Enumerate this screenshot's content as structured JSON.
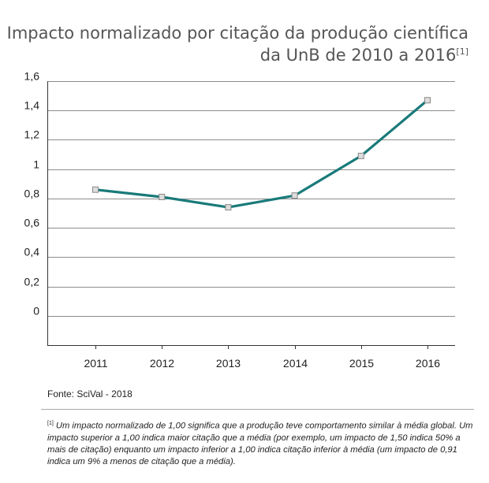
{
  "title_line1": "Impacto normalizado por citação da produção científica",
  "title_line2": "da UnB de 2010 a 2016",
  "title_ref": "[1]",
  "source": "Fonte: SciVal - 2018",
  "footnote_ref": "[1]",
  "footnote_text": " Um impacto normalizado de 1,00 significa que a produção teve comportamento similar à média global. Um impacto superior a 1,00 indica maior citação que a média (por exemplo, um impacto de 1,50 indica 50% a mais de citação) enquanto um impacto inferior a 1,00 indica citação inferior à média (um impacto de 0,91 indica um 9% a menos de citação que a média).",
  "colors": {
    "line": "#1a7a7a",
    "grid": "#666666",
    "marker_fill": "#dddddd",
    "marker_stroke": "#888888"
  },
  "chart_data": {
    "type": "line",
    "categories": [
      "2011",
      "2012",
      "2013",
      "2014",
      "2015",
      "2016"
    ],
    "series": [
      {
        "values": [
          0.86,
          0.81,
          0.74,
          0.82,
          1.09,
          1.47
        ]
      }
    ],
    "yticks": [
      "1,6",
      "1,4",
      "1,2",
      "1",
      "0,8",
      "0,6",
      "0,4",
      "0,2",
      "0"
    ],
    "ytick_values": [
      1.6,
      1.4,
      1.2,
      1.0,
      0.8,
      0.6,
      0.4,
      0.2,
      0
    ],
    "ylim": [
      -0.2,
      1.6
    ],
    "grid": true,
    "markers": "square"
  }
}
